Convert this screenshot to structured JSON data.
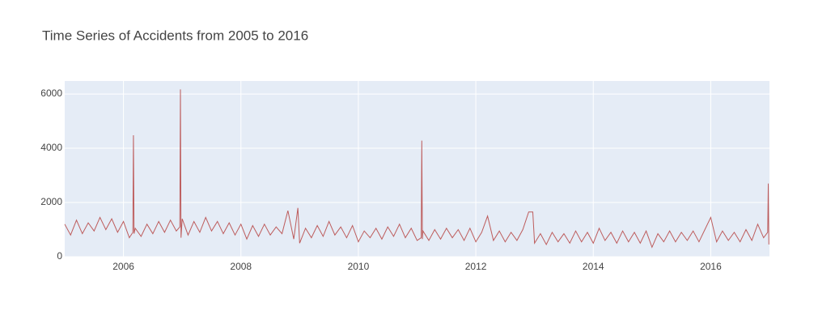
{
  "chart_data": {
    "type": "line",
    "title": "Time Series of Accidents from 2005 to 2016",
    "x": [
      2005.0,
      2005.1,
      2005.2,
      2005.3,
      2005.4,
      2005.5,
      2005.6,
      2005.7,
      2005.8,
      2005.9,
      2006.0,
      2006.1,
      2006.16,
      2006.17,
      2006.18,
      2006.2,
      2006.3,
      2006.4,
      2006.5,
      2006.6,
      2006.7,
      2006.8,
      2006.9,
      2006.96,
      2006.97,
      2006.98,
      2007.0,
      2007.1,
      2007.2,
      2007.3,
      2007.4,
      2007.5,
      2007.6,
      2007.7,
      2007.8,
      2007.9,
      2008.0,
      2008.1,
      2008.2,
      2008.3,
      2008.4,
      2008.5,
      2008.6,
      2008.7,
      2008.8,
      2008.9,
      2008.97,
      2009.0,
      2009.1,
      2009.2,
      2009.3,
      2009.4,
      2009.5,
      2009.6,
      2009.7,
      2009.8,
      2009.9,
      2010.0,
      2010.1,
      2010.2,
      2010.3,
      2010.4,
      2010.5,
      2010.6,
      2010.7,
      2010.8,
      2010.9,
      2011.0,
      2011.07,
      2011.08,
      2011.09,
      2011.1,
      2011.2,
      2011.3,
      2011.4,
      2011.5,
      2011.6,
      2011.7,
      2011.8,
      2011.9,
      2012.0,
      2012.1,
      2012.2,
      2012.3,
      2012.4,
      2012.5,
      2012.6,
      2012.7,
      2012.8,
      2012.9,
      2012.97,
      2013.0,
      2013.1,
      2013.2,
      2013.3,
      2013.4,
      2013.5,
      2013.6,
      2013.7,
      2013.8,
      2013.9,
      2014.0,
      2014.1,
      2014.2,
      2014.3,
      2014.4,
      2014.5,
      2014.6,
      2014.7,
      2014.8,
      2014.9,
      2015.0,
      2015.1,
      2015.2,
      2015.3,
      2015.4,
      2015.5,
      2015.6,
      2015.7,
      2015.8,
      2015.9,
      2016.0,
      2016.1,
      2016.2,
      2016.3,
      2016.4,
      2016.5,
      2016.6,
      2016.7,
      2016.8,
      2016.9,
      2016.97,
      2016.98,
      2016.99
    ],
    "series": [
      {
        "color": "#bd5c5c",
        "values": [
          1200,
          800,
          1350,
          850,
          1250,
          950,
          1450,
          1000,
          1400,
          900,
          1300,
          700,
          900,
          4480,
          850,
          1050,
          750,
          1200,
          850,
          1300,
          900,
          1350,
          950,
          1100,
          6170,
          700,
          1400,
          800,
          1300,
          900,
          1450,
          950,
          1300,
          850,
          1250,
          800,
          1200,
          650,
          1150,
          750,
          1200,
          800,
          1100,
          850,
          1700,
          650,
          1800,
          500,
          1050,
          700,
          1150,
          750,
          1300,
          800,
          1100,
          700,
          1150,
          550,
          950,
          700,
          1050,
          650,
          1100,
          750,
          1200,
          700,
          1050,
          600,
          700,
          4280,
          650,
          950,
          600,
          1000,
          650,
          1050,
          700,
          1000,
          600,
          1050,
          550,
          900,
          1500,
          600,
          950,
          550,
          900,
          600,
          1000,
          1650,
          1650,
          500,
          850,
          450,
          900,
          550,
          850,
          500,
          950,
          550,
          900,
          500,
          1050,
          600,
          900,
          500,
          950,
          550,
          900,
          500,
          950,
          350,
          850,
          550,
          950,
          550,
          900,
          600,
          950,
          550,
          1000,
          1450,
          550,
          950,
          600,
          900,
          550,
          1000,
          600,
          1200,
          700,
          900,
          2700,
          450
        ]
      }
    ],
    "xlim": [
      2005,
      2017
    ],
    "xticks": [
      2006,
      2008,
      2010,
      2012,
      2014,
      2016
    ],
    "ylim": [
      0,
      6480
    ],
    "yticks": [
      0,
      2000,
      4000,
      6000
    ],
    "grid": true
  }
}
